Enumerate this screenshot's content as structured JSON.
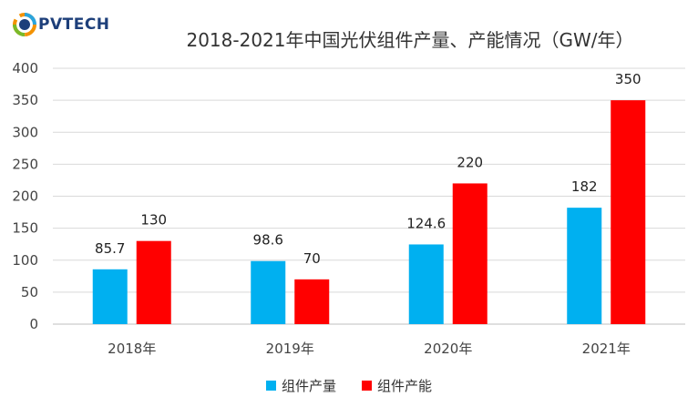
{
  "logo": {
    "text": "PVTECH"
  },
  "colors": {
    "production": "#00b0f0",
    "capacity": "#ff0000",
    "grid": "#d9d9d9",
    "axis": "#bfbfbf"
  },
  "chart_data": {
    "type": "bar",
    "title": "2018-2021年中国光伏组件产量、产能情况（GW/年）",
    "categories": [
      "2018年",
      "2019年",
      "2020年",
      "2021年"
    ],
    "series": [
      {
        "name": "组件产量",
        "values": [
          85.7,
          98.6,
          124.6,
          182
        ],
        "labels": [
          "85.7",
          "98.6",
          "124.6",
          "182"
        ]
      },
      {
        "name": "组件产能",
        "values": [
          130,
          70,
          220,
          350
        ],
        "labels": [
          "130",
          "70",
          "220",
          "350"
        ]
      }
    ],
    "yticks": [
      "0",
      "50",
      "100",
      "150",
      "200",
      "250",
      "300",
      "350",
      "400"
    ],
    "ylim": [
      0,
      400
    ],
    "grid": true,
    "legend": "bottom"
  }
}
